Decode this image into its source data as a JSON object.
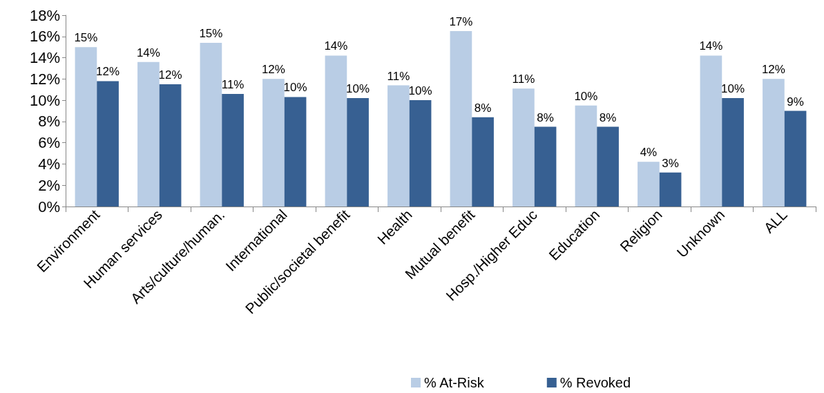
{
  "chart_data": {
    "type": "bar",
    "categories": [
      "Environment",
      "Human services",
      "Arts/culture/human.",
      "International",
      "Public/societal benefit",
      "Health",
      "Mutual benefit",
      "Hosp./Higher Educ",
      "Education",
      "Religion",
      "Unknown",
      "ALL"
    ],
    "series": [
      {
        "name": "% At-Risk",
        "color": "#b9cde5",
        "values": [
          15.0,
          13.6,
          15.4,
          12.0,
          14.2,
          11.4,
          16.5,
          11.1,
          9.5,
          4.2,
          14.2,
          12.0
        ],
        "value_labels": [
          "15%",
          "14%",
          "15%",
          "12%",
          "14%",
          "11%",
          "17%",
          "11%",
          "10%",
          "4%",
          "14%",
          "12%"
        ]
      },
      {
        "name": "% Revoked",
        "color": "#376092",
        "values": [
          11.8,
          11.5,
          10.6,
          10.3,
          10.2,
          10.0,
          8.4,
          7.5,
          7.5,
          3.2,
          10.2,
          9.0
        ],
        "value_labels": [
          "12%",
          "12%",
          "11%",
          "10%",
          "10%",
          "10%",
          "8%",
          "8%",
          "8%",
          "3%",
          "10%",
          "9%"
        ]
      }
    ],
    "ylim": [
      0,
      18
    ],
    "yticks": [
      {
        "value": 0,
        "label": "0%"
      },
      {
        "value": 2,
        "label": "2%"
      },
      {
        "value": 4,
        "label": "4%"
      },
      {
        "value": 6,
        "label": "6%"
      },
      {
        "value": 8,
        "label": "8%"
      },
      {
        "value": 10,
        "label": "10%"
      },
      {
        "value": 12,
        "label": "12%"
      },
      {
        "value": 14,
        "label": "14%"
      },
      {
        "value": 16,
        "label": "16%"
      },
      {
        "value": 18,
        "label": "18%"
      }
    ],
    "grid": false,
    "legend": "bottom"
  }
}
